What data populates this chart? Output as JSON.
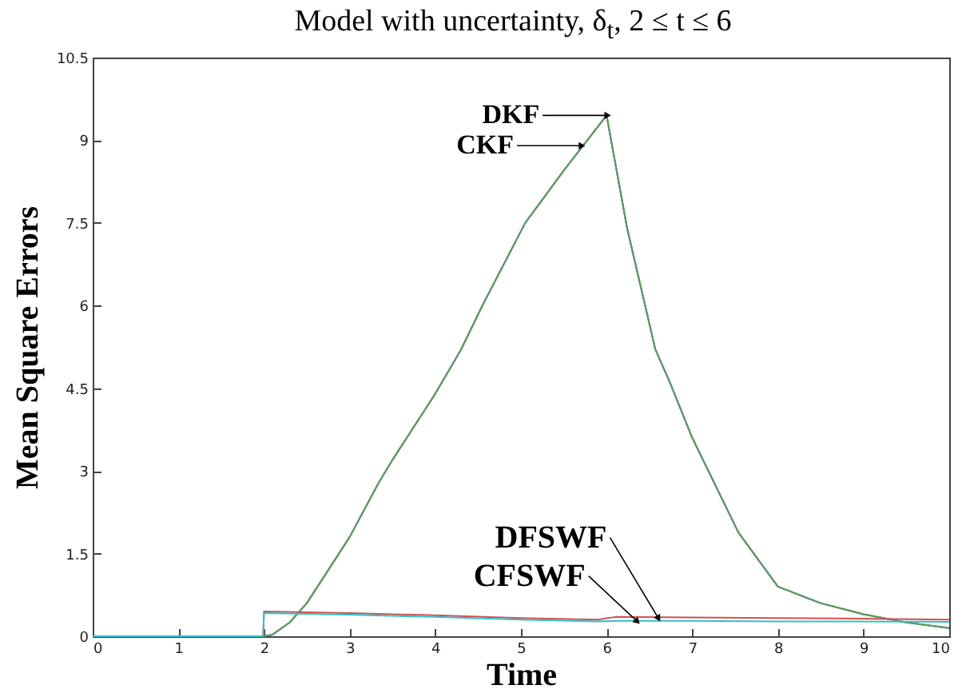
{
  "chart_data": {
    "type": "line",
    "title": "Model with uncertainty, δ$_{t}$, 2 ≤ t ≤ 6",
    "xlabel": "Time",
    "ylabel": "Mean Square Errors",
    "xlim": [
      0,
      10
    ],
    "xticks": [
      0,
      1,
      2,
      3,
      4,
      5,
      6,
      7,
      8,
      9,
      10
    ],
    "ylim": [
      0,
      10.5
    ],
    "yticks": [
      0,
      1.5,
      3,
      4.5,
      6,
      7.5,
      9,
      10.5
    ],
    "grid": false,
    "series": [
      {
        "color": "#23408e",
        "x": [
          0,
          2,
          2.1,
          2.3,
          2.5,
          3,
          3.33,
          3.5,
          4,
          4.3,
          4.55,
          5.05,
          5.5,
          6,
          6.24,
          6.57,
          6.73,
          7,
          7.54,
          8,
          8.5,
          9,
          9.5,
          10
        ],
        "values": [
          0,
          0,
          0.03,
          0.25,
          0.6,
          1.8,
          2.76,
          3.2,
          4.4,
          5.2,
          6,
          7.5,
          8.45,
          9.45,
          7.4,
          5.2,
          4.64,
          3.6,
          1.88,
          0.9,
          0.6,
          0.4,
          0.25,
          0.15
        ]
      },
      {
        "color": "#5f9e5a",
        "x": [
          0,
          2,
          2.1,
          2.3,
          2.5,
          3,
          3.33,
          3.5,
          4,
          4.3,
          4.55,
          5.05,
          5.5,
          6,
          6.24,
          6.57,
          6.73,
          7,
          7.54,
          8,
          8.5,
          9,
          9.5,
          10
        ],
        "values": [
          0,
          0,
          0.03,
          0.25,
          0.6,
          1.8,
          2.76,
          3.2,
          4.4,
          5.2,
          6,
          7.5,
          8.45,
          9.45,
          7.4,
          5.2,
          4.64,
          3.6,
          1.88,
          0.9,
          0.6,
          0.4,
          0.25,
          0.15
        ]
      },
      {
        "color": "#d05050",
        "x": [
          0,
          1.99,
          2,
          3,
          4,
          5,
          5.9,
          6.1,
          7,
          8,
          9,
          10
        ],
        "values": [
          0,
          0,
          0.45,
          0.42,
          0.38,
          0.33,
          0.3,
          0.35,
          0.34,
          0.33,
          0.32,
          0.3
        ]
      },
      {
        "color": "#30c0c8",
        "x": [
          0,
          1.99,
          2,
          3,
          4,
          5,
          5.9,
          6.1,
          7,
          8,
          9,
          10
        ],
        "values": [
          0,
          0,
          0.42,
          0.39,
          0.35,
          0.3,
          0.27,
          0.28,
          0.28,
          0.27,
          0.27,
          0.26
        ]
      }
    ],
    "annotations": [
      {
        "text": "DKF",
        "x": 6,
        "y": 9.45
      },
      {
        "text": "CKF",
        "x": 5.7,
        "y": 8.9
      },
      {
        "text": "DFSWF",
        "x": 6.6,
        "y": 0.34
      },
      {
        "text": "CFSWF",
        "x": 6.35,
        "y": 0.28
      }
    ]
  }
}
